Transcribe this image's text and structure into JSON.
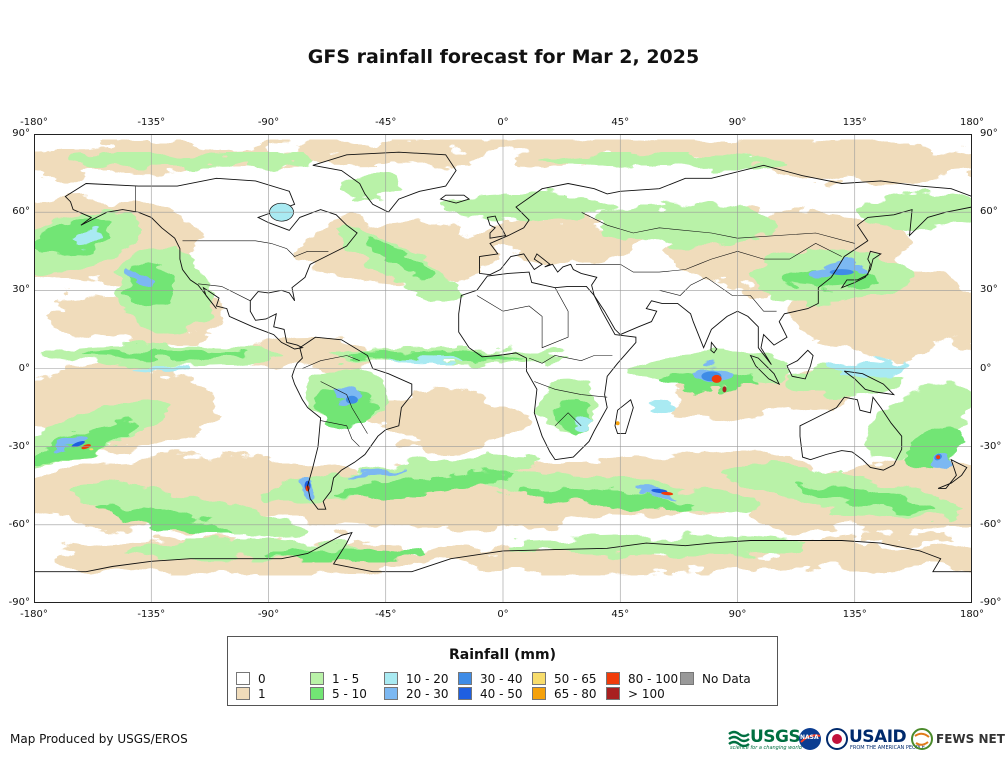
{
  "title": "GFS rainfall forecast for Mar 2, 2025",
  "axes": {
    "lon_ticks": [
      "-180°",
      "-135°",
      "-90°",
      "-45°",
      "0°",
      "45°",
      "90°",
      "135°",
      "180°"
    ],
    "lat_ticks": [
      "90°",
      "60°",
      "30°",
      "0°",
      "-30°",
      "-60°",
      "-90°"
    ],
    "lon_range": [
      -180,
      180
    ],
    "lat_range": [
      -90,
      90
    ],
    "grid_step_deg": 45,
    "lat_grid_step_deg": 30
  },
  "legend": {
    "title": "Rainfall (mm)",
    "items": [
      {
        "label": "0",
        "color": "#ffffff"
      },
      {
        "label": "1",
        "color": "#f0dcbb"
      },
      {
        "label": "1 - 5",
        "color": "#b9f2a8"
      },
      {
        "label": "5 - 10",
        "color": "#72e574"
      },
      {
        "label": "10 - 20",
        "color": "#a9eaf2"
      },
      {
        "label": "20 - 30",
        "color": "#7cb8f2"
      },
      {
        "label": "30 - 40",
        "color": "#3f8ce6"
      },
      {
        "label": "40 - 50",
        "color": "#1f5fe0"
      },
      {
        "label": "50 - 65",
        "color": "#f7dc6b"
      },
      {
        "label": "65 - 80",
        "color": "#f5a10b"
      },
      {
        "label": "80 - 100",
        "color": "#f03c0a"
      },
      {
        "label": "> 100",
        "color": "#a82020"
      },
      {
        "label": "No Data",
        "color": "#999999"
      }
    ]
  },
  "credit": "Map Produced by USGS/EROS",
  "logos": {
    "usgs": "USGS",
    "usgs_tagline": "science for a changing world",
    "nasa": "NASA",
    "usaid": "USAID",
    "usaid_tagline": "FROM THE AMERICAN PEOPLE",
    "fewsnet": "FEWS NET"
  }
}
